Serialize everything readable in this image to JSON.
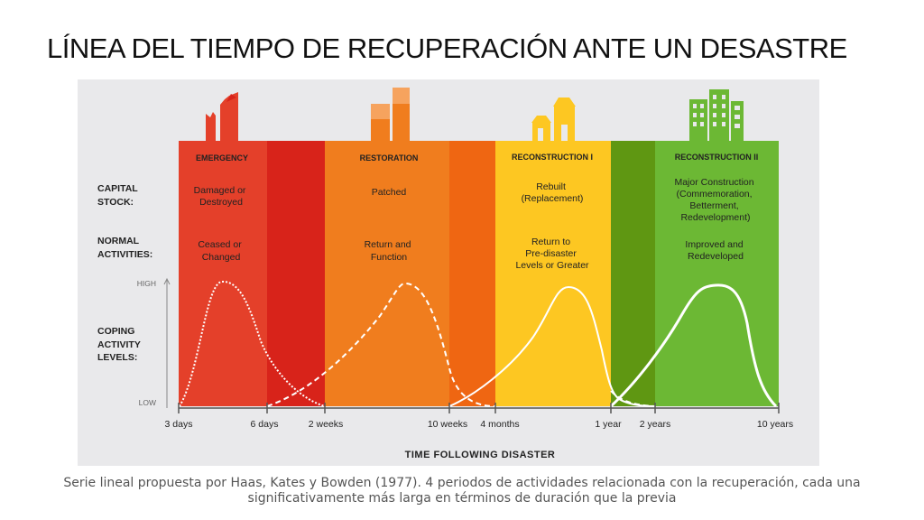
{
  "title": "LÍNEA DEL TIEMPO DE RECUPERACIÓN ANTE UN DESASTRE",
  "rows": {
    "capital_stock": [
      "CAPITAL",
      "STOCK:"
    ],
    "normal_activities": [
      "NORMAL",
      "ACTIVITIES:"
    ],
    "coping": [
      "COPING",
      "ACTIVITY",
      "LEVELS:"
    ]
  },
  "axis": {
    "high": "HIGH",
    "low": "LOW",
    "xlabel": "TIME FOLLOWING DISASTER"
  },
  "phases": [
    {
      "name": "EMERGENCY",
      "capital": [
        "Damaged or",
        "Destroyed"
      ],
      "activities": [
        "Ceased or",
        "Changed"
      ]
    },
    {
      "name": "RESTORATION",
      "capital": [
        "Patched"
      ],
      "activities": [
        "Return and",
        "Function"
      ]
    },
    {
      "name": "RECONSTRUCTION I",
      "capital": [
        "Rebuilt",
        "(Replacement)"
      ],
      "activities": [
        "Return to",
        "Pre-disaster",
        "Levels or Greater"
      ]
    },
    {
      "name": "RECONSTRUCTION II",
      "capital": [
        "Major Construction",
        "(Commemoration,",
        "Betterment,",
        "Redevelopment)"
      ],
      "activities": [
        "Improved and",
        "Redeveloped"
      ]
    }
  ],
  "ticks": [
    "3 days",
    "6 days",
    "2 weeks",
    "10 weeks",
    "4 months",
    "1 year",
    "2 years",
    "10 years"
  ],
  "colors": {
    "emergency": "#e4402a",
    "emergency_overlap": "#d8231a",
    "restoration": "#f07d1e",
    "restoration_overlap": "#ef6612",
    "reconstruction1": "#fdc722",
    "reconstruction1_overlap": "#5f9712",
    "reconstruction2": "#6cb834"
  },
  "caption": [
    "Serie lineal propuesta por Haas, Kates y Bowden (1977). 4 periodos de actividades relacionada con la recuperación, cada una",
    "significativamente más larga en términos de duración que la previa"
  ]
}
